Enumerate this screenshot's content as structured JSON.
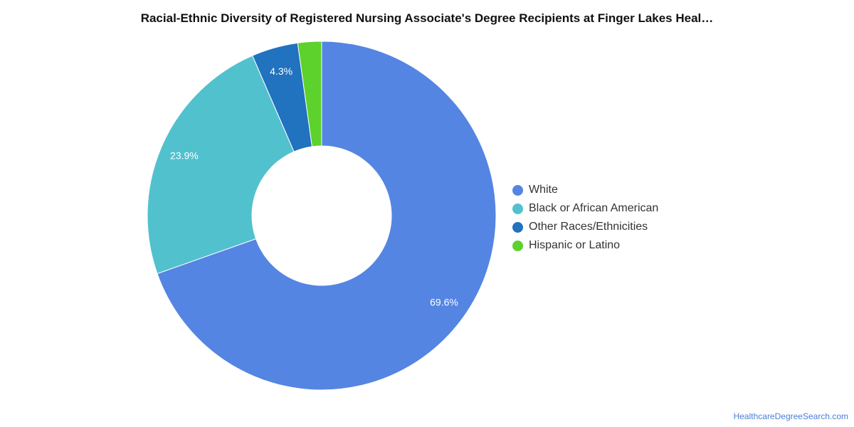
{
  "chart_data": {
    "type": "pie",
    "donut": true,
    "title": "Racial-Ethnic Diversity of Registered Nursing Associate's Degree Recipients at Finger Lakes Heal…",
    "legend_position": "right",
    "slices": [
      {
        "label": "White",
        "value": 69.6,
        "display_label": "69.6%",
        "color": "#5485e2"
      },
      {
        "label": "Black or African American",
        "value": 23.9,
        "display_label": "23.9%",
        "color": "#52c1ce"
      },
      {
        "label": "Other Races/Ethnicities",
        "value": 4.3,
        "display_label": "4.3%",
        "color": "#2172bf"
      },
      {
        "label": "Hispanic or Latino",
        "value": 2.2,
        "display_label": "",
        "color": "#5dd12c"
      }
    ]
  },
  "footer": {
    "credit": "HealthcareDegreeSearch.com"
  }
}
